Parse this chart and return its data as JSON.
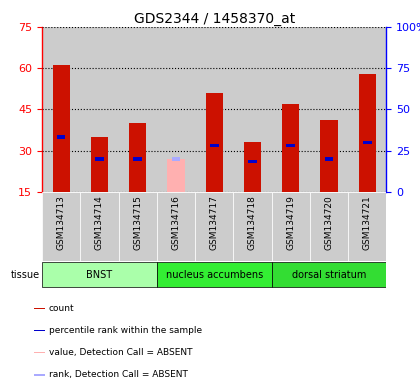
{
  "title": "GDS2344 / 1458370_at",
  "samples": [
    "GSM134713",
    "GSM134714",
    "GSM134715",
    "GSM134716",
    "GSM134717",
    "GSM134718",
    "GSM134719",
    "GSM134720",
    "GSM134721"
  ],
  "count_values": [
    61,
    35,
    40,
    null,
    51,
    33,
    47,
    41,
    58
  ],
  "rank_values": [
    35,
    27,
    27,
    null,
    32,
    26,
    32,
    27,
    33
  ],
  "absent_value": 27,
  "absent_rank": 27,
  "absent_index": 3,
  "ylim_left": [
    15,
    75
  ],
  "ylim_right": [
    0,
    100
  ],
  "yticks_left": [
    15,
    30,
    45,
    60,
    75
  ],
  "yticks_right": [
    0,
    25,
    50,
    75,
    100
  ],
  "bar_color_present": "#CC1100",
  "bar_color_absent": "#FFB0B0",
  "rank_color_present": "#0000CC",
  "rank_color_absent": "#AAAAFF",
  "col_bg_color": "#CCCCCC",
  "plot_bg_color": "#FFFFFF",
  "tissue_colors": [
    "#AAFFAA",
    "#33EE33",
    "#33DD33"
  ],
  "tissue_labels": [
    "BNST",
    "nucleus accumbens",
    "dorsal striatum"
  ],
  "tissue_starts": [
    0,
    3,
    6
  ],
  "tissue_ends": [
    3,
    6,
    9
  ],
  "legend_items": [
    {
      "color": "#CC1100",
      "label": "count"
    },
    {
      "color": "#0000CC",
      "label": "percentile rank within the sample"
    },
    {
      "color": "#FFB0B0",
      "label": "value, Detection Call = ABSENT"
    },
    {
      "color": "#AAAAFF",
      "label": "rank, Detection Call = ABSENT"
    }
  ]
}
